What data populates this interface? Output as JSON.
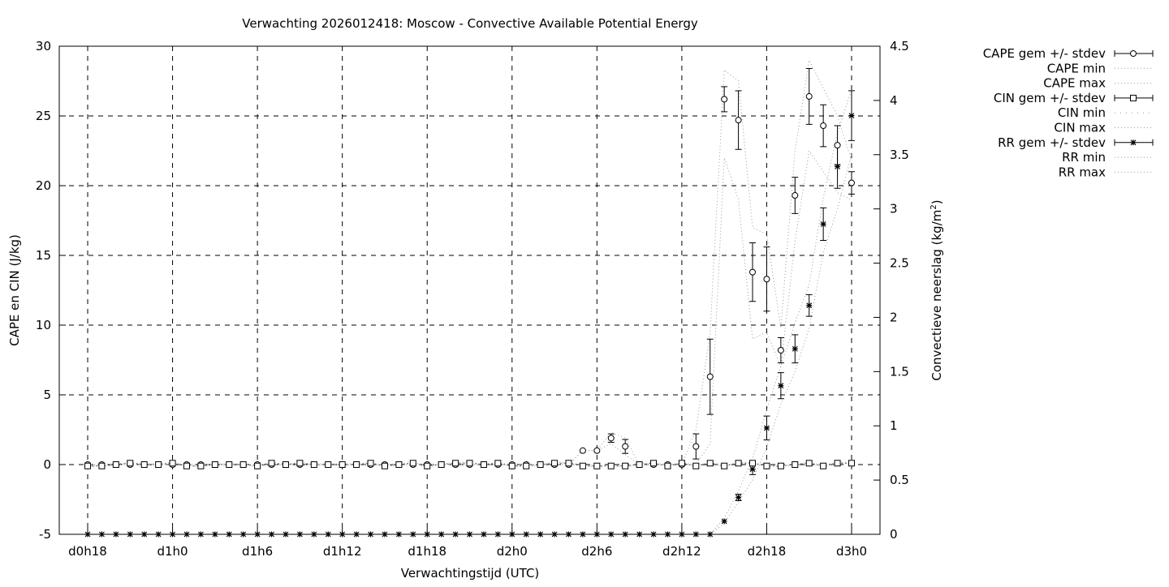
{
  "chart_data": {
    "type": "line",
    "title": "Verwachting 2026012418: Moscow - Convective Available Potential Energy",
    "xlabel": "Verwachtingstijd (UTC)",
    "ylabel": "CAPE en CIN (J/kg)",
    "y2label_main": "Convectieve neerslag (kg/m",
    "y2label_sup": "2",
    "y2label_end": ")",
    "ylim": [
      -5,
      30
    ],
    "y2lim": [
      0,
      4.5
    ],
    "grid": true,
    "legend_position": "outside-top-right",
    "x_hours_start": 18,
    "x_hours_step": 1,
    "x_ticks": [
      {
        "hour": 18,
        "label": "d0h18"
      },
      {
        "hour": 24,
        "label": "d1h0"
      },
      {
        "hour": 30,
        "label": "d1h6"
      },
      {
        "hour": 36,
        "label": "d1h12"
      },
      {
        "hour": 42,
        "label": "d1h18"
      },
      {
        "hour": 48,
        "label": "d2h0"
      },
      {
        "hour": 54,
        "label": "d2h6"
      },
      {
        "hour": 60,
        "label": "d2h12"
      },
      {
        "hour": 66,
        "label": "d2h18"
      },
      {
        "hour": 72,
        "label": "d3h0"
      }
    ],
    "y_ticks": [
      "-5",
      "0",
      "5",
      "10",
      "15",
      "20",
      "25",
      "30"
    ],
    "y_tick_values": [
      -5,
      0,
      5,
      10,
      15,
      20,
      25,
      30
    ],
    "y2_ticks": [
      "0",
      "0.5",
      "1",
      "1.5",
      "2",
      "2.5",
      "3",
      "3.5",
      "4",
      "4.5"
    ],
    "y2_tick_values": [
      0,
      0.5,
      1,
      1.5,
      2,
      2.5,
      3,
      3.5,
      4,
      4.5
    ],
    "legend": [
      {
        "label": "CAPE gem +/- stdev",
        "style": "errorbar-circle"
      },
      {
        "label": "CAPE min",
        "style": "dotted"
      },
      {
        "label": "CAPE max",
        "style": "dotted"
      },
      {
        "label": "CIN gem +/- stdev",
        "style": "errorbar-square"
      },
      {
        "label": "CIN min",
        "style": "sparse-dotted"
      },
      {
        "label": "CIN max",
        "style": "dotted"
      },
      {
        "label": "RR gem +/- stdev",
        "style": "errorbar-star"
      },
      {
        "label": "RR min",
        "style": "dotted"
      },
      {
        "label": "RR max",
        "style": "dotted"
      }
    ],
    "series": {
      "cape_mean": [
        0,
        0,
        0,
        0,
        0,
        0,
        0,
        0,
        0,
        0,
        0,
        0,
        0,
        0,
        0,
        0,
        0,
        0,
        0,
        0,
        0,
        0,
        0,
        0,
        0,
        0,
        0,
        0,
        0,
        0,
        0,
        0,
        0,
        0,
        0,
        1.0,
        1.0,
        1.9,
        1.3,
        0,
        0,
        0,
        0,
        1.3,
        6.3,
        26.2,
        24.7,
        13.8,
        13.3,
        8.2,
        19.3,
        26.4,
        24.3,
        22.9,
        20.2
      ],
      "cape_std": [
        0,
        0,
        0,
        0,
        0,
        0,
        0,
        0,
        0,
        0,
        0,
        0,
        0,
        0,
        0,
        0,
        0,
        0,
        0,
        0,
        0,
        0,
        0,
        0,
        0,
        0,
        0,
        0,
        0,
        0,
        0,
        0,
        0,
        0,
        0,
        0,
        0,
        0.3,
        0.5,
        0,
        0,
        0,
        0,
        0.9,
        2.7,
        0.9,
        2.1,
        2.1,
        2.3,
        0.9,
        1.3,
        2.0,
        1.5,
        1.4,
        0.8
      ],
      "cape_min": [
        0,
        0,
        0,
        0,
        0,
        0,
        0,
        0,
        0,
        0,
        0,
        0,
        0,
        0,
        0,
        0,
        0,
        0,
        0,
        0,
        0,
        0,
        0,
        0,
        0,
        0,
        0,
        0,
        0,
        0,
        0,
        0,
        0,
        0,
        0,
        1,
        1,
        1.5,
        0.7,
        0,
        0,
        0,
        0,
        0,
        1.5,
        22,
        19,
        9,
        9.5,
        7,
        16,
        22.5,
        21,
        19.5,
        19
      ],
      "cape_max": [
        0,
        0,
        0,
        0,
        0,
        0,
        0,
        0,
        0,
        0,
        0,
        0,
        0,
        0,
        0,
        0,
        0,
        0,
        0,
        0,
        0,
        0,
        0,
        0,
        0,
        0,
        0,
        0,
        0,
        0,
        0,
        0,
        0,
        0,
        0,
        1,
        1,
        2.3,
        1.9,
        0,
        0,
        0,
        0,
        2.5,
        9.5,
        28.3,
        27.5,
        17,
        16.5,
        9.8,
        22.5,
        29,
        27,
        25,
        21.8
      ],
      "cin_mean": [
        -0.1,
        -0.1,
        0,
        0.1,
        0,
        0,
        0.1,
        -0.1,
        -0.1,
        0,
        0,
        0,
        -0.1,
        0.1,
        0,
        0.1,
        0,
        0,
        0,
        0,
        0.1,
        -0.1,
        0,
        0.1,
        -0.1,
        0,
        0.1,
        0.1,
        0,
        0.1,
        -0.1,
        -0.1,
        0,
        0.1,
        0.1,
        -0.1,
        -0.1,
        -0.1,
        -0.1,
        0,
        0.1,
        -0.1,
        0.1,
        -0.1,
        0.1,
        -0.1,
        0.1,
        0.1,
        -0.1,
        -0.1,
        0,
        0.1,
        -0.1,
        0.1,
        0.1
      ],
      "rr_mean": [
        0,
        0,
        0,
        0,
        0,
        0,
        0,
        0,
        0,
        0,
        0,
        0,
        0,
        0,
        0,
        0,
        0,
        0,
        0,
        0,
        0,
        0,
        0,
        0,
        0,
        0,
        0,
        0,
        0,
        0,
        0,
        0,
        0,
        0,
        0,
        0,
        0,
        0,
        0,
        0,
        0,
        0,
        0,
        0,
        0,
        0.12,
        0.34,
        0.6,
        0.98,
        1.37,
        1.71,
        2.11,
        2.86,
        3.39,
        3.86
      ],
      "rr_std": [
        0,
        0,
        0,
        0,
        0,
        0,
        0,
        0,
        0,
        0,
        0,
        0,
        0,
        0,
        0,
        0,
        0,
        0,
        0,
        0,
        0,
        0,
        0,
        0,
        0,
        0,
        0,
        0,
        0,
        0,
        0,
        0,
        0,
        0,
        0,
        0,
        0,
        0,
        0,
        0,
        0,
        0,
        0,
        0,
        0,
        0,
        0.03,
        0.05,
        0.11,
        0.12,
        0.13,
        0.1,
        0.15,
        0.2,
        0.23
      ],
      "rr_min": [
        0,
        0,
        0,
        0,
        0,
        0,
        0,
        0,
        0,
        0,
        0,
        0,
        0,
        0,
        0,
        0,
        0,
        0,
        0,
        0,
        0,
        0,
        0,
        0,
        0,
        0,
        0,
        0,
        0,
        0,
        0,
        0,
        0,
        0,
        0,
        0,
        0,
        0,
        0,
        0,
        0,
        0,
        0,
        0,
        0,
        0.1,
        0.3,
        0.5,
        0.8,
        1.2,
        1.5,
        1.9,
        2.6,
        3.0,
        3.5
      ],
      "rr_max": [
        0,
        0,
        0,
        0,
        0,
        0,
        0,
        0,
        0,
        0,
        0,
        0,
        0,
        0,
        0,
        0,
        0,
        0,
        0,
        0,
        0,
        0,
        0,
        0,
        0,
        0,
        0,
        0,
        0,
        0,
        0,
        0,
        0,
        0,
        0,
        0,
        0,
        0,
        0,
        0,
        0,
        0,
        0,
        0,
        0,
        0.15,
        0.4,
        0.7,
        1.15,
        1.55,
        1.95,
        2.3,
        3.1,
        3.7,
        4.1
      ]
    }
  }
}
